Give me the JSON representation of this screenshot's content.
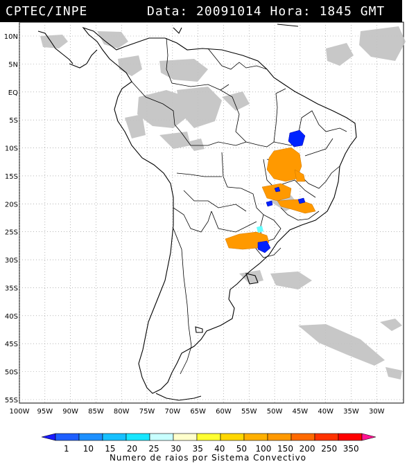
{
  "header": {
    "agency": "CPTEC/INPE",
    "date_hour": "Data: 20091014 Hora: 1845 GMT"
  },
  "map": {
    "lat_labels": [
      "10N",
      "5N",
      "EQ",
      "5S",
      "10S",
      "15S",
      "20S",
      "25S",
      "30S",
      "35S",
      "40S",
      "45S",
      "50S",
      "55S"
    ],
    "lon_labels": [
      "100W",
      "95W",
      "90W",
      "85W",
      "80W",
      "75W",
      "70W",
      "65W",
      "60W",
      "55W",
      "50W",
      "45W",
      "40W",
      "35W",
      "30W"
    ],
    "lat_values": [
      10,
      5,
      0,
      -5,
      -10,
      -15,
      -20,
      -25,
      -30,
      -35,
      -40,
      -45,
      -50,
      -55
    ],
    "lon_values": [
      -100,
      -95,
      -90,
      -85,
      -80,
      -75,
      -70,
      -65,
      -60,
      -55,
      -50,
      -45,
      -40,
      -35,
      -30
    ],
    "colors": {
      "coast": "#000000",
      "grid": "#888888",
      "cloud": "#bdbdbd",
      "storm_orange": "#ff9900",
      "storm_blue": "#0033ff"
    }
  },
  "colorbar": {
    "labels": [
      "1",
      "10",
      "15",
      "20",
      "25",
      "30",
      "35",
      "40",
      "50",
      "100",
      "150",
      "200",
      "250",
      "350"
    ],
    "colors": [
      "#1a1aff",
      "#1f5fff",
      "#1e90ff",
      "#17c0ff",
      "#18e6ff",
      "#c8ffff",
      "#ffffcc",
      "#ffff33",
      "#ffd700",
      "#ffb000",
      "#ff9900",
      "#ff6a00",
      "#ff3300",
      "#ff0000",
      "#ff1493"
    ],
    "title": "Numero de raios por Sistema Convectivo"
  }
}
